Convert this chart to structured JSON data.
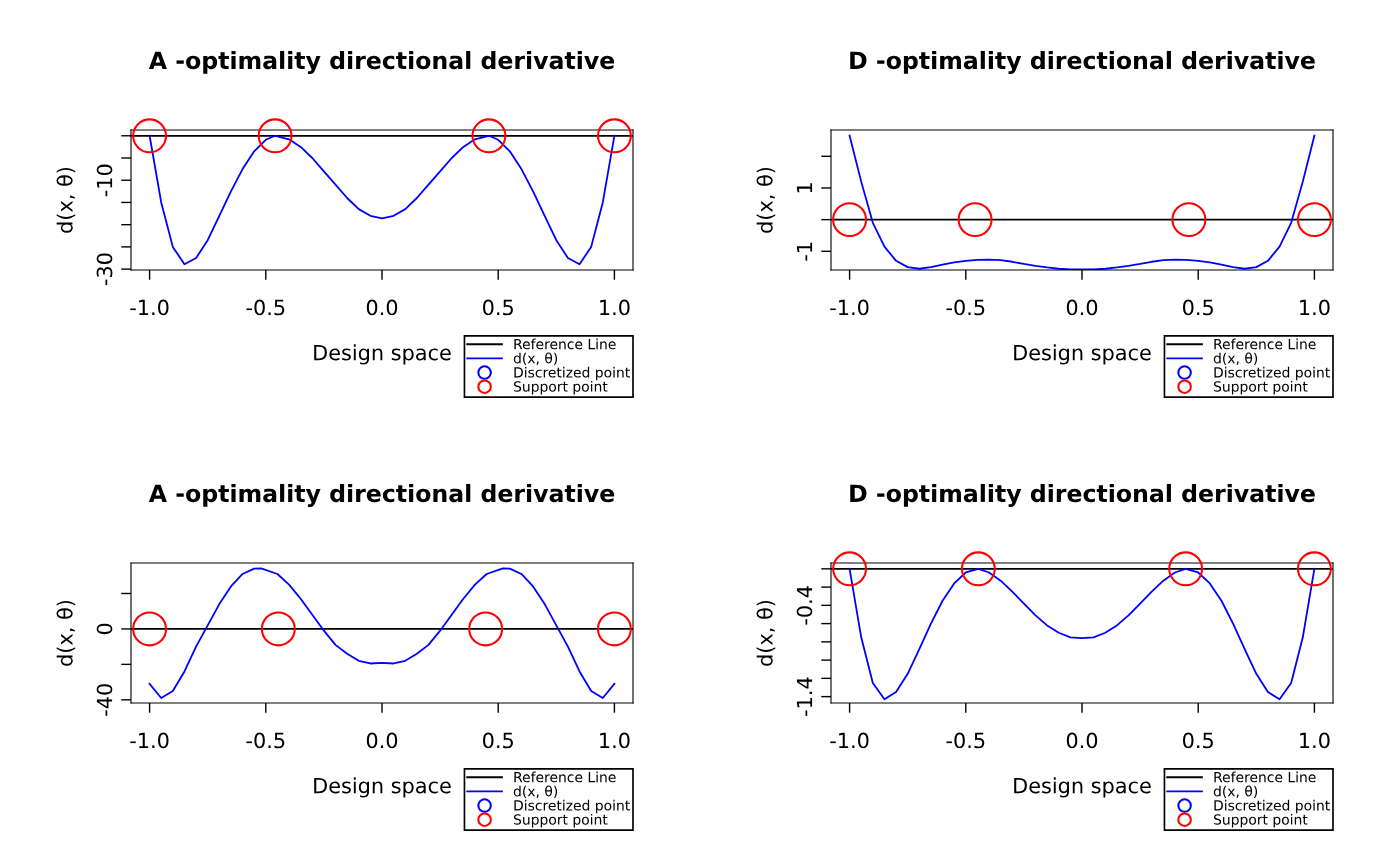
{
  "chart_data": [
    {
      "type": "line",
      "title": "A -optimality directional derivative",
      "xlabel": "Design space",
      "ylabel": "d(x, θ)",
      "xlim": [
        -1.08,
        1.08
      ],
      "ylim": [
        -30.2,
        1.3
      ],
      "xticks": [
        {
          "value": -1,
          "label": "-1.0"
        },
        {
          "value": -0.5,
          "label": "-0.5"
        },
        {
          "value": 0,
          "label": "0.0"
        },
        {
          "value": 0.5,
          "label": "0.5"
        },
        {
          "value": 1,
          "label": "1.0"
        }
      ],
      "yticks": [
        {
          "value": 0,
          "label": null
        },
        {
          "value": -5,
          "label": null
        },
        -10,
        {
          "value": -15,
          "label": null
        },
        {
          "value": -20,
          "label": null
        },
        {
          "value": -25,
          "label": null
        },
        -30
      ],
      "grid": false,
      "legend": "bottom right",
      "ref_lines": [
        {
          "axis": "y",
          "value": 0,
          "label": "Reference Line",
          "color": "#000000"
        }
      ],
      "series": [
        {
          "name": "d(x, θ)",
          "color": "#0000ff",
          "x": [
            -1,
            -0.95,
            -0.9,
            -0.85,
            -0.8,
            -0.75,
            -0.7,
            -0.65,
            -0.6,
            -0.55,
            -0.5,
            -0.46,
            -0.4,
            -0.35,
            -0.3,
            -0.25,
            -0.2,
            -0.15,
            -0.1,
            -0.05,
            0,
            0.05,
            0.1,
            0.15,
            0.2,
            0.25,
            0.3,
            0.35,
            0.4,
            0.46,
            0.5,
            0.55,
            0.6,
            0.65,
            0.7,
            0.75,
            0.8,
            0.85,
            0.9,
            0.95,
            1
          ],
          "values": [
            0,
            -15,
            -25,
            -28.9,
            -27.5,
            -23.5,
            -18,
            -12.5,
            -7.5,
            -3.5,
            -0.9,
            0,
            -0.8,
            -2.5,
            -5,
            -8,
            -11,
            -14,
            -16.5,
            -18,
            -18.6,
            -18,
            -16.5,
            -14,
            -11,
            -8,
            -5,
            -2.5,
            -0.8,
            0,
            -0.9,
            -3.5,
            -7.5,
            -12.5,
            -18,
            -23.5,
            -27.5,
            -28.9,
            -25,
            -15,
            0
          ]
        },
        {
          "name": "Discretized point",
          "type": "scatter",
          "marker": "circle",
          "color": "#0000ff"
        },
        {
          "name": "Support point",
          "type": "scatter",
          "marker": "circle",
          "color": "#ff0000",
          "x": [
            -1,
            -0.46,
            0.46,
            1
          ],
          "values": [
            0,
            0,
            0,
            0
          ]
        }
      ]
    },
    {
      "type": "line",
      "title": "D -optimality directional derivative",
      "xlabel": "Design space",
      "ylabel": "d(x, θ)",
      "xlim": [
        -1.08,
        1.08
      ],
      "ylim": [
        -1.59,
        2.83
      ],
      "xticks": [
        {
          "value": -1,
          "label": "-1.0"
        },
        {
          "value": -0.5,
          "label": "-0.5"
        },
        {
          "value": 0,
          "label": "0.0"
        },
        {
          "value": 0.5,
          "label": "0.5"
        },
        {
          "value": 1,
          "label": "1.0"
        }
      ],
      "yticks": [
        {
          "value": 2,
          "label": null
        },
        1,
        {
          "value": 0,
          "label": null
        },
        -1
      ],
      "grid": false,
      "legend": "bottom right",
      "ref_lines": [
        {
          "axis": "y",
          "value": 0,
          "label": "Reference Line",
          "color": "#000000"
        }
      ],
      "series": [
        {
          "name": "d(x, θ)",
          "color": "#0000ff",
          "x": [
            -1,
            -0.95,
            -0.9,
            -0.85,
            -0.8,
            -0.75,
            -0.7,
            -0.65,
            -0.6,
            -0.55,
            -0.5,
            -0.45,
            -0.4,
            -0.35,
            -0.3,
            -0.25,
            -0.2,
            -0.15,
            -0.1,
            -0.05,
            0,
            0.05,
            0.1,
            0.15,
            0.2,
            0.25,
            0.3,
            0.35,
            0.4,
            0.45,
            0.5,
            0.55,
            0.6,
            0.65,
            0.7,
            0.75,
            0.8,
            0.85,
            0.9,
            0.95,
            1
          ],
          "values": [
            2.65,
            1.2,
            -0.1,
            -0.85,
            -1.3,
            -1.5,
            -1.55,
            -1.5,
            -1.42,
            -1.35,
            -1.3,
            -1.27,
            -1.26,
            -1.28,
            -1.33,
            -1.4,
            -1.46,
            -1.51,
            -1.55,
            -1.57,
            -1.57,
            -1.57,
            -1.55,
            -1.51,
            -1.46,
            -1.4,
            -1.33,
            -1.28,
            -1.26,
            -1.27,
            -1.3,
            -1.35,
            -1.42,
            -1.5,
            -1.55,
            -1.5,
            -1.3,
            -0.85,
            -0.1,
            1.2,
            2.65
          ]
        },
        {
          "name": "Discretized point",
          "type": "scatter",
          "marker": "circle",
          "color": "#0000ff"
        },
        {
          "name": "Support point",
          "type": "scatter",
          "marker": "circle",
          "color": "#ff0000",
          "x": [
            -1,
            -0.46,
            0.46,
            1
          ],
          "values": [
            0,
            0,
            0,
            0
          ]
        }
      ]
    },
    {
      "type": "line",
      "title": "A -optimality directional derivative",
      "xlabel": "Design space",
      "ylabel": "d(x, θ)",
      "xlim": [
        -1.08,
        1.08
      ],
      "ylim": [
        -41.8,
        37.2
      ],
      "xticks": [
        {
          "value": -1,
          "label": "-1.0"
        },
        {
          "value": -0.5,
          "label": "-0.5"
        },
        {
          "value": 0,
          "label": "0.0"
        },
        {
          "value": 0.5,
          "label": "0.5"
        },
        {
          "value": 1,
          "label": "1.0"
        }
      ],
      "yticks": [
        {
          "value": 20,
          "label": null
        },
        0,
        {
          "value": -20,
          "label": null
        },
        -40
      ],
      "grid": false,
      "legend": "bottom right",
      "ref_lines": [
        {
          "axis": "y",
          "value": 0,
          "label": "Reference Line",
          "color": "#000000"
        }
      ],
      "series": [
        {
          "name": "d(x, θ)",
          "color": "#0000ff",
          "x": [
            -1,
            -0.95,
            -0.9,
            -0.85,
            -0.8,
            -0.75,
            -0.7,
            -0.65,
            -0.6,
            -0.55,
            -0.52,
            -0.45,
            -0.4,
            -0.35,
            -0.3,
            -0.25,
            -0.2,
            -0.15,
            -0.1,
            -0.05,
            0,
            0.05,
            0.1,
            0.15,
            0.2,
            0.25,
            0.3,
            0.35,
            0.4,
            0.45,
            0.52,
            0.55,
            0.6,
            0.65,
            0.7,
            0.75,
            0.8,
            0.85,
            0.9,
            0.95,
            1
          ],
          "values": [
            -31,
            -39,
            -35,
            -24,
            -10,
            2,
            14,
            24,
            31,
            34,
            34.2,
            31,
            25,
            17,
            8,
            -1,
            -9,
            -14,
            -18,
            -19.5,
            -19.2,
            -19.5,
            -18,
            -14,
            -9,
            -1,
            8,
            17,
            25,
            31,
            34.2,
            34,
            31,
            24,
            14,
            2,
            -10,
            -24,
            -35,
            -39,
            -31
          ]
        },
        {
          "name": "Discretized point",
          "type": "scatter",
          "marker": "circle",
          "color": "#0000ff"
        },
        {
          "name": "Support point",
          "type": "scatter",
          "marker": "circle",
          "color": "#ff0000",
          "x": [
            -1,
            -0.446,
            0.446,
            1
          ],
          "values": [
            0,
            0,
            0,
            0
          ]
        }
      ]
    },
    {
      "type": "line",
      "title": "D -optimality directional derivative",
      "xlabel": "Design space",
      "ylabel": "d(x, θ)",
      "xlim": [
        -1.08,
        1.08
      ],
      "ylim": [
        -1.47,
        0.064
      ],
      "xticks": [
        {
          "value": -1,
          "label": "-1.0"
        },
        {
          "value": -0.5,
          "label": "-0.5"
        },
        {
          "value": 0,
          "label": "0.0"
        },
        {
          "value": 0.5,
          "label": "0.5"
        },
        {
          "value": 1,
          "label": "1.0"
        }
      ],
      "yticks": [
        {
          "value": 0,
          "label": null
        },
        {
          "value": -0.2,
          "label": null
        },
        -0.4,
        {
          "value": -0.6,
          "label": null
        },
        {
          "value": -0.8,
          "label": null
        },
        {
          "value": -1.0,
          "label": null
        },
        {
          "value": -1.2,
          "label": null
        },
        -1.4
      ],
      "grid": false,
      "legend": "bottom right",
      "ref_lines": [
        {
          "axis": "y",
          "value": 0,
          "label": "Reference Line",
          "color": "#000000"
        }
      ],
      "series": [
        {
          "name": "d(x, θ)",
          "color": "#0000ff",
          "x": [
            -1,
            -0.95,
            -0.9,
            -0.85,
            -0.8,
            -0.75,
            -0.7,
            -0.65,
            -0.6,
            -0.55,
            -0.5,
            -0.446,
            -0.4,
            -0.35,
            -0.3,
            -0.25,
            -0.2,
            -0.15,
            -0.1,
            -0.05,
            0,
            0.05,
            0.1,
            0.15,
            0.2,
            0.25,
            0.3,
            0.35,
            0.4,
            0.446,
            0.5,
            0.55,
            0.6,
            0.65,
            0.7,
            0.75,
            0.8,
            0.85,
            0.9,
            0.95,
            1
          ],
          "values": [
            0,
            -0.75,
            -1.25,
            -1.43,
            -1.35,
            -1.15,
            -0.88,
            -0.6,
            -0.35,
            -0.16,
            -0.04,
            0,
            -0.04,
            -0.13,
            -0.25,
            -0.38,
            -0.51,
            -0.62,
            -0.7,
            -0.75,
            -0.76,
            -0.75,
            -0.7,
            -0.62,
            -0.51,
            -0.38,
            -0.25,
            -0.13,
            -0.04,
            0,
            -0.04,
            -0.16,
            -0.35,
            -0.6,
            -0.88,
            -1.15,
            -1.35,
            -1.43,
            -1.25,
            -0.75,
            0
          ]
        },
        {
          "name": "Discretized point",
          "type": "scatter",
          "marker": "circle",
          "color": "#0000ff"
        },
        {
          "name": "Support point",
          "type": "scatter",
          "marker": "circle",
          "color": "#ff0000",
          "x": [
            -1,
            -0.446,
            0.446,
            1
          ],
          "values": [
            0,
            0,
            0,
            0
          ]
        }
      ]
    }
  ]
}
